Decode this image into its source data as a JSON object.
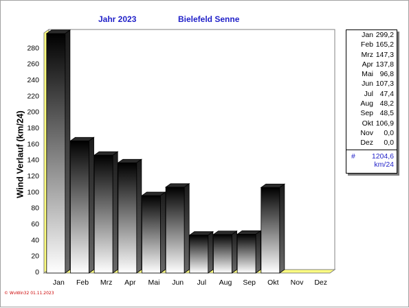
{
  "header": {
    "year_label": "Jahr  2023",
    "station": "Bielefeld Senne"
  },
  "chart_data": {
    "type": "bar",
    "title": "Jahr  2023   Bielefeld Senne",
    "ylabel": "Wind Verlauf  (km/24)",
    "xlabel": "",
    "categories": [
      "Jan",
      "Feb",
      "Mrz",
      "Apr",
      "Mai",
      "Jun",
      "Jul",
      "Aug",
      "Sep",
      "Okt",
      "Nov",
      "Dez"
    ],
    "values": [
      299.2,
      165.2,
      147.3,
      137.8,
      96.8,
      107.3,
      47.4,
      48.2,
      48.5,
      106.9,
      0.0,
      0.0
    ],
    "yticks": [
      0,
      20,
      40,
      60,
      80,
      100,
      120,
      140,
      160,
      180,
      200,
      220,
      240,
      260,
      280
    ],
    "ylim": [
      0,
      300
    ],
    "grid": true,
    "legend_position": "right",
    "colors": {
      "bar_dark": "#000000",
      "bar_light": "#ffffff",
      "floor": "#ffff80",
      "grid": "#808080",
      "accent": "#1f1fc8"
    }
  },
  "legend": {
    "rows": [
      {
        "month": "Jan",
        "value": "299,2"
      },
      {
        "month": "Feb",
        "value": "165,2"
      },
      {
        "month": "Mrz",
        "value": "147,3"
      },
      {
        "month": "Apr",
        "value": "137,8"
      },
      {
        "month": "Mai",
        "value": "96,8"
      },
      {
        "month": "Jun",
        "value": "107,3"
      },
      {
        "month": "Jul",
        "value": "47,4"
      },
      {
        "month": "Aug",
        "value": "48,2"
      },
      {
        "month": "Sep",
        "value": "48,5"
      },
      {
        "month": "Okt",
        "value": "106,9"
      },
      {
        "month": "Nov",
        "value": "0,0"
      },
      {
        "month": "Dez",
        "value": "0,0"
      }
    ],
    "total_symbol": "#",
    "total_value": "1204,6",
    "total_unit": "km/24"
  },
  "footer": "© WvWin32  01.11.2023"
}
